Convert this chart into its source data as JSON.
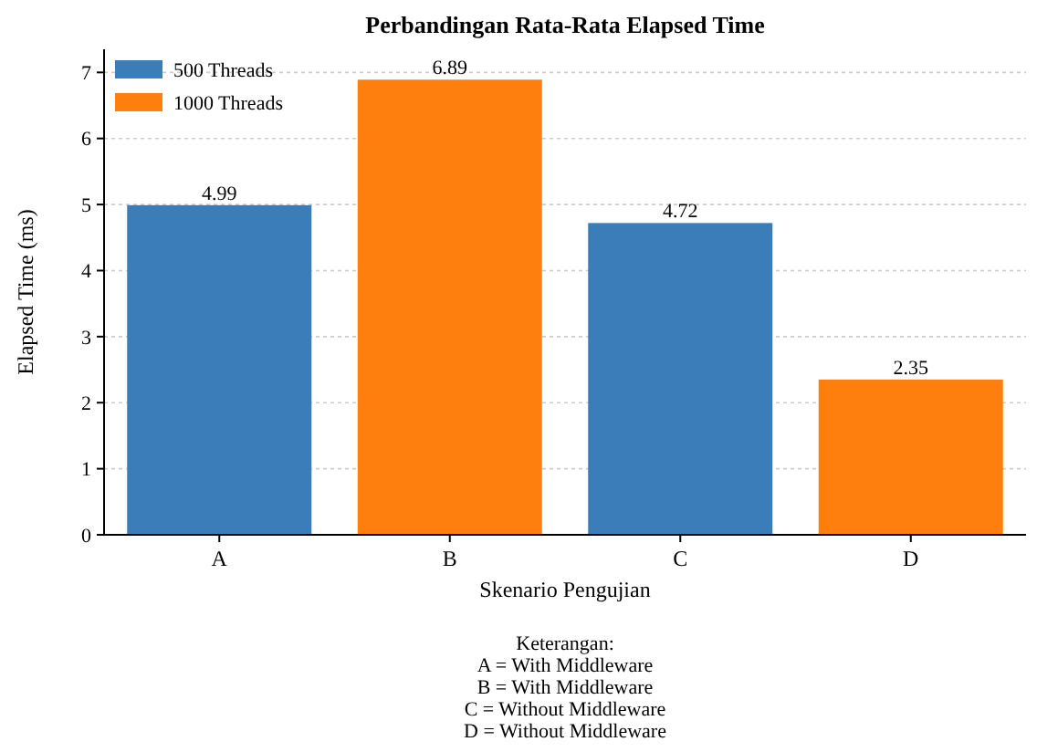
{
  "chart_data": {
    "type": "bar",
    "title": "Perbandingan Rata-Rata Elapsed Time",
    "xlabel": "Skenario Pengujian",
    "ylabel": "Elapsed Time (ms)",
    "categories": [
      "A",
      "B",
      "C",
      "D"
    ],
    "series": [
      {
        "name": "500 Threads",
        "color": "#3a7db8",
        "values": [
          4.99,
          null,
          4.72,
          null
        ]
      },
      {
        "name": "1000 Threads",
        "color": "#ff7f0e",
        "values": [
          null,
          6.89,
          null,
          2.35
        ]
      }
    ],
    "stacked": true,
    "ylim": [
      0,
      7.35
    ],
    "yticks": [
      0,
      1,
      2,
      3,
      4,
      5,
      6,
      7
    ],
    "grid": "y",
    "legend": "top left",
    "data_labels": true,
    "annotations": [
      "Keterangan:",
      "A = With Middleware",
      "B = With Middleware",
      "C = Without Middleware",
      "D = Without Middleware"
    ]
  }
}
